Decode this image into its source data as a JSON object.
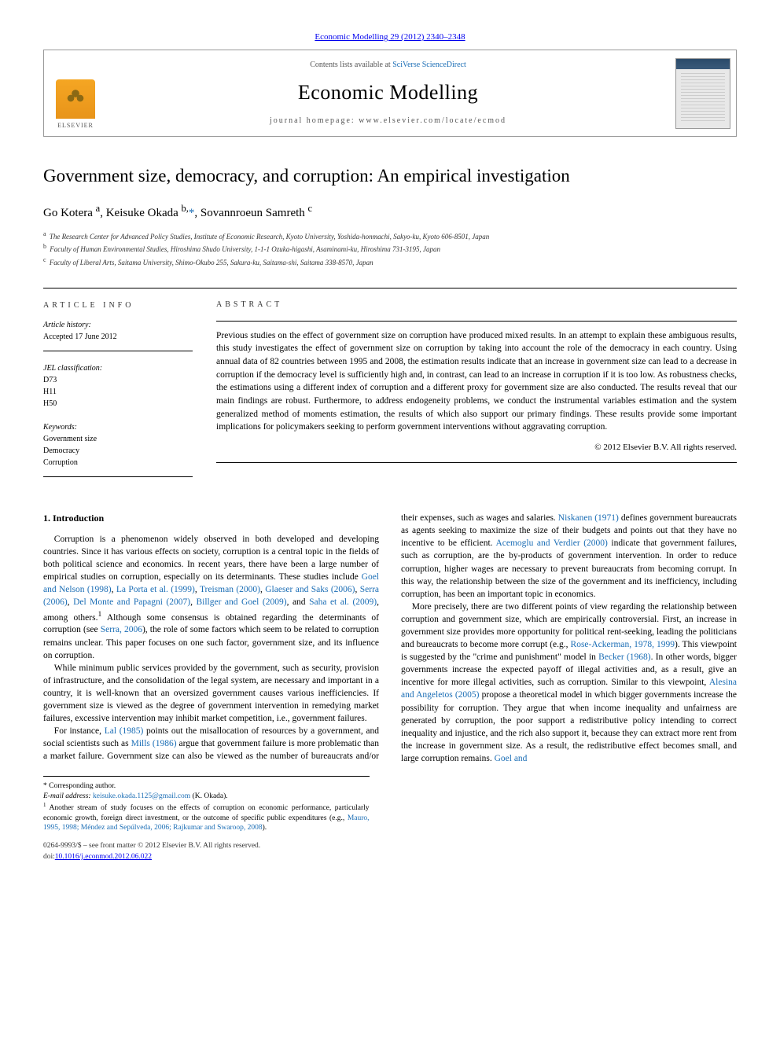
{
  "journal_ref_link": "Economic Modelling 29 (2012) 2340–2348",
  "header": {
    "contents_prefix": "Contents lists available at ",
    "contents_link": "SciVerse ScienceDirect",
    "journal_name": "Economic Modelling",
    "homepage_prefix": "journal homepage: ",
    "homepage": "www.elsevier.com/locate/ecmod",
    "publisher_name": "ELSEVIER"
  },
  "title": "Government size, democracy, and corruption: An empirical investigation",
  "authors_html": "Go Kotera <sup>a</sup>, Keisuke Okada <sup>b,</sup><a href='#'>*</a>, Sovannroeun Samreth <sup>c</sup>",
  "affiliations": [
    {
      "sup": "a",
      "text": "The Research Center for Advanced Policy Studies, Institute of Economic Research, Kyoto University, Yoshida-honmachi, Sakyo-ku, Kyoto 606-8501, Japan"
    },
    {
      "sup": "b",
      "text": "Faculty of Human Environmental Studies, Hiroshima Shudo University, 1-1-1 Ozuka-higashi, Asaminami-ku, Hiroshima 731-3195, Japan"
    },
    {
      "sup": "c",
      "text": "Faculty of Liberal Arts, Saitama University, Shimo-Okubo 255, Sakura-ku, Saitama-shi, Saitama 338-8570, Japan"
    }
  ],
  "info": {
    "heading": "ARTICLE INFO",
    "history_lbl": "Article history:",
    "history_val": "Accepted 17 June 2012",
    "jel_lbl": "JEL classification:",
    "jel_vals": [
      "D73",
      "H11",
      "H50"
    ],
    "kw_lbl": "Keywords:",
    "kw_vals": [
      "Government size",
      "Democracy",
      "Corruption"
    ]
  },
  "abstract": {
    "heading": "ABSTRACT",
    "text": "Previous studies on the effect of government size on corruption have produced mixed results. In an attempt to explain these ambiguous results, this study investigates the effect of government size on corruption by taking into account the role of the democracy in each country. Using annual data of 82 countries between 1995 and 2008, the estimation results indicate that an increase in government size can lead to a decrease in corruption if the democracy level is sufficiently high and, in contrast, can lead to an increase in corruption if it is too low. As robustness checks, the estimations using a different index of corruption and a different proxy for government size are also conducted. The results reveal that our main findings are robust. Furthermore, to address endogeneity problems, we conduct the instrumental variables estimation and the system generalized method of moments estimation, the results of which also support our primary findings. These results provide some important implications for policymakers seeking to perform government interventions without aggravating corruption.",
    "copyright": "© 2012 Elsevier B.V. All rights reserved."
  },
  "section1_head": "1. Introduction",
  "para1": "Corruption is a phenomenon widely observed in both developed and developing countries. Since it has various effects on society, corruption is a central topic in the fields of both political science and economics. In recent years, there have been a large number of empirical studies on corruption, especially on its determinants. These studies include <a href='#'>Goel and Nelson (1998)</a>, <a href='#'>La Porta et al. (1999)</a>, <a href='#'>Treisman (2000)</a>, <a href='#'>Glaeser and Saks (2006)</a>, <a href='#'>Serra (2006)</a>, <a href='#'>Del Monte and Papagni (2007)</a>, <a href='#'>Billger and Goel (2009)</a>, and <a href='#'>Saha et al. (2009)</a>, among others.<sup>1</sup> Although some consensus is obtained regarding the determinants of corruption (see <a href='#'>Serra, 2006</a>), the role of some factors which seem to be related to corruption remains unclear. This paper focuses on one such factor, government size, and its influence on corruption.",
  "para2": "While minimum public services provided by the government, such as security, provision of infrastructure, and the consolidation of the legal system, are necessary and important in a country, it is well-known that an oversized government causes various inefficiencies. If government size is viewed as the degree of government intervention in remedying market failures, excessive intervention may inhibit market competition, i.e., government failures.",
  "para3": "For instance, <a href='#'>Lal (1985)</a> points out the misallocation of resources by a government, and social scientists such as <a href='#'>Mills (1986)</a> argue that government failure is more problematic than a market failure. Government size can also be viewed as the number of bureaucrats and/or their expenses, such as wages and salaries. <a href='#'>Niskanen (1971)</a> defines government bureaucrats as agents seeking to maximize the size of their budgets and points out that they have no incentive to be efficient. <a href='#'>Acemoglu and Verdier (2000)</a> indicate that government failures, such as corruption, are the by-products of government intervention. In order to reduce corruption, higher wages are necessary to prevent bureaucrats from becoming corrupt. In this way, the relationship between the size of the government and its inefficiency, including corruption, has been an important topic in economics.",
  "para4": "More precisely, there are two different points of view regarding the relationship between corruption and government size, which are empirically controversial. First, an increase in government size provides more opportunity for political rent-seeking, leading the politicians and bureaucrats to become more corrupt (e.g., <a href='#'>Rose-Ackerman, 1978, 1999</a>). This viewpoint is suggested by the \"crime and punishment\" model in <a href='#'>Becker (1968)</a>. In other words, bigger governments increase the expected payoff of illegal activities and, as a result, give an incentive for more illegal activities, such as corruption. Similar to this viewpoint, <a href='#'>Alesina and Angeletos (2005)</a> propose a theoretical model in which bigger governments increase the possibility for corruption. They argue that when income inequality and unfairness are generated by corruption, the poor support a redistributive policy intending to correct inequality and injustice, and the rich also support it, because they can extract more rent from the increase in government size. As a result, the redistributive effect becomes small, and large corruption remains. <a href='#'>Goel and</a>",
  "footnotes": {
    "corr_label": "* Corresponding author.",
    "email_lbl": "E-mail address:",
    "email": "keisuke.okada.1125@gmail.com",
    "email_suffix": "(K. Okada).",
    "fn1": "Another stream of study focuses on the effects of corruption on economic performance, particularly economic growth, foreign direct investment, or the outcome of specific public expenditures (e.g., <a href='#'>Mauro, 1995, 1998; Méndez and Sepúlveda, 2006; Rajkumar and Swaroop, 2008</a>)."
  },
  "bottom": {
    "line1": "0264-9993/$ – see front matter © 2012 Elsevier B.V. All rights reserved.",
    "line2_lbl": "doi:",
    "line2_val": "10.1016/j.econmod.2012.06.022"
  },
  "colors": {
    "link": "#1a6db5",
    "text": "#000000",
    "border": "#999999",
    "elsevier_orange": "#f5a623"
  }
}
